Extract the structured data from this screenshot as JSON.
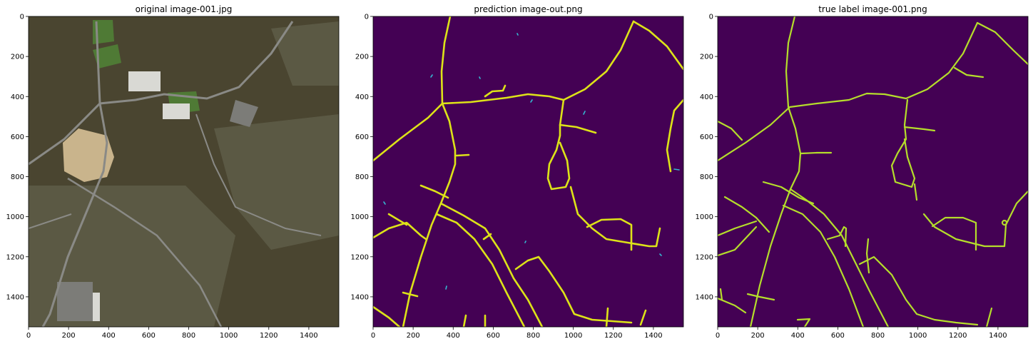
{
  "chart_data": [
    {
      "type": "image",
      "title": "original image-001.jpg",
      "xticks": [
        0,
        200,
        400,
        600,
        800,
        1000,
        1200,
        1400
      ],
      "yticks": [
        0,
        200,
        400,
        600,
        800,
        1000,
        1200,
        1400
      ],
      "xlim": [
        0,
        1550
      ],
      "ylim": [
        1550,
        0
      ],
      "colors": {
        "forest": "#4a4530",
        "field": "#4f7a35",
        "clearing": "#c9b48c",
        "road": "#8a8a86",
        "roof": "#d9d9d4"
      }
    },
    {
      "type": "image",
      "title": "prediction image-out.png",
      "xticks": [
        0,
        200,
        400,
        600,
        800,
        1000,
        1200,
        1400
      ],
      "yticks": [
        0,
        200,
        400,
        600,
        800,
        1000,
        1200,
        1400
      ],
      "xlim": [
        0,
        1550
      ],
      "ylim": [
        1550,
        0
      ],
      "colors": {
        "background": "#440154",
        "road": "#dde318",
        "fragment": "#35b7d0"
      }
    },
    {
      "type": "image",
      "title": "true label image-001.png",
      "xticks": [
        0,
        200,
        400,
        600,
        800,
        1000,
        1200,
        1400
      ],
      "yticks": [
        0,
        200,
        400,
        600,
        800,
        1000,
        1200,
        1400
      ],
      "xlim": [
        0,
        1550
      ],
      "ylim": [
        1550,
        0
      ],
      "colors": {
        "background": "#440154",
        "road": "#b5de2b"
      }
    }
  ]
}
